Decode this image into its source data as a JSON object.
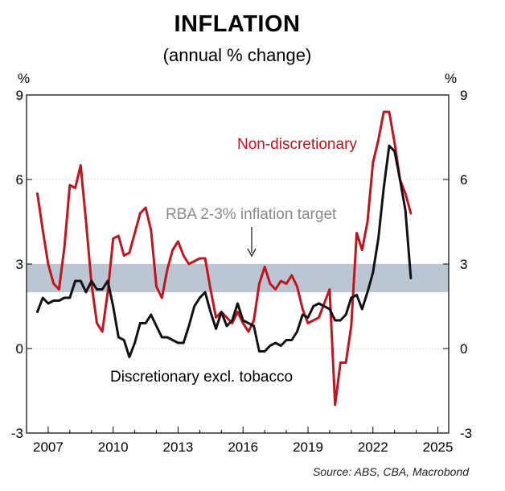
{
  "title": "INFLATION",
  "subtitle": "(annual % change)",
  "source": "Source: ABS, CBA, Macrobond",
  "chart_data": {
    "type": "line",
    "ylabel_left": "%",
    "ylabel_right": "%",
    "ylim": [
      -3,
      9
    ],
    "xlim": [
      2006,
      2025.5
    ],
    "yticks": [
      -3,
      0,
      3,
      6,
      9
    ],
    "xticks": [
      2007,
      2010,
      2013,
      2016,
      2019,
      2022,
      2025
    ],
    "target_band": {
      "low": 2,
      "high": 3,
      "label": "RBA 2-3% inflation target",
      "color": "#bcc6d3"
    },
    "series": [
      {
        "name": "Non-discretionary",
        "color": "#c0141f",
        "x": [
          2006.5,
          2006.75,
          2007.0,
          2007.25,
          2007.5,
          2007.75,
          2008.0,
          2008.25,
          2008.5,
          2008.75,
          2009.0,
          2009.25,
          2009.5,
          2009.75,
          2010.0,
          2010.25,
          2010.5,
          2010.75,
          2011.0,
          2011.25,
          2011.5,
          2011.75,
          2012.0,
          2012.25,
          2012.5,
          2012.75,
          2013.0,
          2013.25,
          2013.5,
          2013.75,
          2014.0,
          2014.25,
          2014.5,
          2014.75,
          2015.0,
          2015.25,
          2015.5,
          2015.75,
          2016.0,
          2016.25,
          2016.5,
          2016.75,
          2017.0,
          2017.25,
          2017.5,
          2017.75,
          2018.0,
          2018.25,
          2018.5,
          2018.75,
          2019.0,
          2019.25,
          2019.5,
          2019.75,
          2020.0,
          2020.25,
          2020.5,
          2020.75,
          2021.0,
          2021.25,
          2021.5,
          2021.75,
          2022.0,
          2022.25,
          2022.5,
          2022.75,
          2023.0,
          2023.25,
          2023.5,
          2023.75
        ],
        "values": [
          5.5,
          4.2,
          3.0,
          2.3,
          2.1,
          3.6,
          5.8,
          5.7,
          6.5,
          4.5,
          2.3,
          0.9,
          0.6,
          2.0,
          3.9,
          4.0,
          3.3,
          3.4,
          4.1,
          4.8,
          5.0,
          4.2,
          2.2,
          1.8,
          2.8,
          3.5,
          3.8,
          3.3,
          3.0,
          3.1,
          3.2,
          3.2,
          2.1,
          1.1,
          1.3,
          1.1,
          0.9,
          1.3,
          0.9,
          0.6,
          1.0,
          2.3,
          2.9,
          2.3,
          2.1,
          2.4,
          2.3,
          2.6,
          2.2,
          1.4,
          0.9,
          1.0,
          1.1,
          1.6,
          2.1,
          -2.0,
          -0.5,
          -0.5,
          0.8,
          4.1,
          3.5,
          4.5,
          6.6,
          7.4,
          8.4,
          8.4,
          7.3,
          6.0,
          5.5,
          4.8
        ]
      },
      {
        "name": "Discretionary excl. tobacco",
        "color": "#111111",
        "x": [
          2006.5,
          2006.75,
          2007.0,
          2007.25,
          2007.5,
          2007.75,
          2008.0,
          2008.25,
          2008.5,
          2008.75,
          2009.0,
          2009.25,
          2009.5,
          2009.75,
          2010.0,
          2010.25,
          2010.5,
          2010.75,
          2011.0,
          2011.25,
          2011.5,
          2011.75,
          2012.0,
          2012.25,
          2012.5,
          2012.75,
          2013.0,
          2013.25,
          2013.5,
          2013.75,
          2014.0,
          2014.25,
          2014.5,
          2014.75,
          2015.0,
          2015.25,
          2015.5,
          2015.75,
          2016.0,
          2016.25,
          2016.5,
          2016.75,
          2017.0,
          2017.25,
          2017.5,
          2017.75,
          2018.0,
          2018.25,
          2018.5,
          2018.75,
          2019.0,
          2019.25,
          2019.5,
          2019.75,
          2020.0,
          2020.25,
          2020.5,
          2020.75,
          2021.0,
          2021.25,
          2021.5,
          2021.75,
          2022.0,
          2022.25,
          2022.5,
          2022.75,
          2023.0,
          2023.25,
          2023.5,
          2023.75
        ],
        "values": [
          1.3,
          1.8,
          1.6,
          1.7,
          1.7,
          1.8,
          1.8,
          2.4,
          2.4,
          2.0,
          2.4,
          2.1,
          2.1,
          2.4,
          1.5,
          0.4,
          0.3,
          -0.3,
          0.2,
          0.9,
          0.9,
          1.2,
          0.8,
          0.4,
          0.4,
          0.3,
          0.2,
          0.2,
          0.8,
          1.5,
          1.8,
          2.0,
          1.3,
          0.7,
          1.3,
          0.8,
          1.0,
          1.6,
          1.0,
          0.9,
          0.8,
          -0.1,
          -0.1,
          0.1,
          0.2,
          0.1,
          0.3,
          0.3,
          0.6,
          1.2,
          1.1,
          1.5,
          1.6,
          1.5,
          1.4,
          1.0,
          1.0,
          1.2,
          1.8,
          1.9,
          1.4,
          2.0,
          2.7,
          3.9,
          5.7,
          7.2,
          7.0,
          6.0,
          4.9,
          2.5
        ]
      }
    ],
    "annotations": [
      {
        "text": "Non-discretionary",
        "color": "#c0141f"
      },
      {
        "text": "RBA 2-3% inflation target",
        "color": "#8a8a8a"
      },
      {
        "text": "Discretionary excl. tobacco",
        "color": "#000000"
      }
    ],
    "grid": true,
    "legend": "none"
  }
}
